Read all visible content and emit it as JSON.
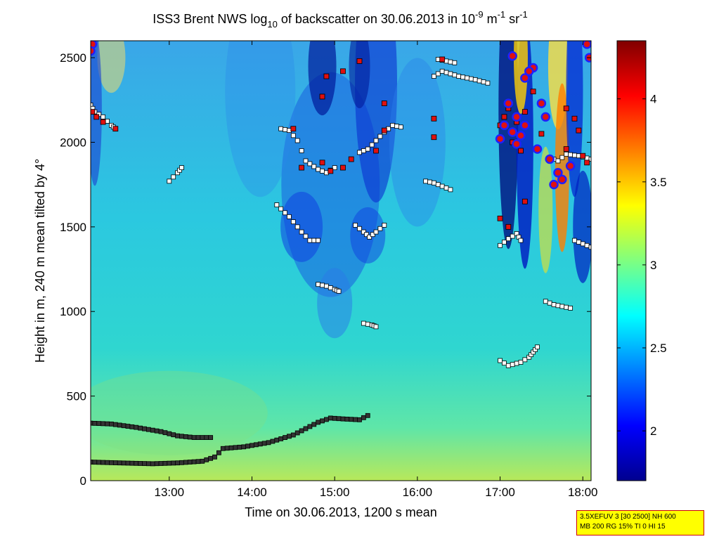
{
  "chart_data": {
    "type": "heatmap",
    "title_main": "ISS3 Brent NWS log",
    "title_sub": "10",
    "title_mid": " of backscatter on 30.06.2013 in 10",
    "title_sup1": "-9",
    "title_unit_m": " m",
    "title_sup2": "-1",
    "title_unit_sr": " sr",
    "title_sup3": "-1",
    "xlabel": "Time on 30.06.2013, 1200 s mean",
    "ylabel": "Height in m, 240 m mean tilted by 4°",
    "x_range_hours": [
      12.05,
      18.1
    ],
    "ylim": [
      0,
      2600
    ],
    "x_ticks": [
      {
        "value": 13,
        "label": "13:00"
      },
      {
        "value": 14,
        "label": "14:00"
      },
      {
        "value": 15,
        "label": "15:00"
      },
      {
        "value": 16,
        "label": "16:00"
      },
      {
        "value": 17,
        "label": "17:00"
      },
      {
        "value": 18,
        "label": "18:00"
      }
    ],
    "y_ticks": [
      {
        "value": 0,
        "label": "0"
      },
      {
        "value": 500,
        "label": "500"
      },
      {
        "value": 1000,
        "label": "1000"
      },
      {
        "value": 1500,
        "label": "1500"
      },
      {
        "value": 2000,
        "label": "2000"
      },
      {
        "value": 2500,
        "label": "2500"
      }
    ],
    "colorbar": {
      "range": [
        1.7,
        4.35
      ],
      "ticks": [
        {
          "value": 2,
          "label": "2"
        },
        {
          "value": 2.5,
          "label": "2.5"
        },
        {
          "value": 3,
          "label": "3"
        },
        {
          "value": 3.5,
          "label": "3.5"
        },
        {
          "value": 4,
          "label": "4"
        }
      ]
    },
    "series": [
      {
        "values": [
          [
            12.05,
            340
          ],
          [
            12.3,
            335
          ],
          [
            12.6,
            315
          ],
          [
            12.9,
            290
          ],
          [
            13.1,
            265
          ],
          [
            13.3,
            255
          ],
          [
            13.5,
            255
          ]
        ]
      },
      {
        "values": [
          [
            12.05,
            110
          ],
          [
            12.4,
            105
          ],
          [
            12.8,
            100
          ],
          [
            13.1,
            105
          ],
          [
            13.4,
            115
          ],
          [
            13.55,
            140
          ],
          [
            13.65,
            190
          ],
          [
            13.9,
            200
          ],
          [
            14.2,
            225
          ],
          [
            14.5,
            270
          ],
          [
            14.8,
            345
          ],
          [
            14.95,
            370
          ],
          [
            15.1,
            365
          ],
          [
            15.3,
            360
          ],
          [
            15.4,
            385
          ]
        ]
      },
      {
        "values": [
          [
            14.3,
            1630
          ],
          [
            14.45,
            1560
          ],
          [
            14.6,
            1470
          ],
          [
            14.7,
            1420
          ],
          [
            14.8,
            1420
          ]
        ]
      },
      {
        "values": [
          [
            15.25,
            1510
          ],
          [
            15.35,
            1470
          ],
          [
            15.42,
            1440
          ],
          [
            15.5,
            1470
          ],
          [
            15.6,
            1510
          ]
        ]
      },
      {
        "values": [
          [
            14.35,
            2080
          ],
          [
            14.45,
            2070
          ],
          [
            14.55,
            2010
          ],
          [
            14.65,
            1890
          ],
          [
            14.8,
            1840
          ],
          [
            14.9,
            1820
          ],
          [
            15.0,
            1850
          ]
        ]
      },
      {
        "values": [
          [
            15.3,
            1940
          ],
          [
            15.4,
            1960
          ],
          [
            15.5,
            2010
          ],
          [
            15.6,
            2060
          ],
          [
            15.7,
            2100
          ],
          [
            15.8,
            2090
          ]
        ]
      },
      {
        "values": [
          [
            16.1,
            1770
          ],
          [
            16.2,
            1760
          ],
          [
            16.3,
            1740
          ],
          [
            16.4,
            1720
          ]
        ]
      },
      {
        "values": [
          [
            16.2,
            2390
          ],
          [
            16.3,
            2420
          ],
          [
            16.5,
            2390
          ],
          [
            16.7,
            2370
          ],
          [
            16.85,
            2350
          ]
        ]
      },
      {
        "values": [
          [
            17.0,
            710
          ],
          [
            17.1,
            680
          ],
          [
            17.25,
            700
          ],
          [
            17.35,
            730
          ],
          [
            17.4,
            760
          ],
          [
            17.45,
            790
          ]
        ]
      },
      {
        "values": [
          [
            17.0,
            1390
          ],
          [
            17.1,
            1430
          ],
          [
            17.2,
            1460
          ],
          [
            17.25,
            1420
          ]
        ]
      },
      {
        "values": [
          [
            17.55,
            1060
          ],
          [
            17.65,
            1040
          ],
          [
            17.75,
            1030
          ],
          [
            17.85,
            1020
          ]
        ]
      },
      {
        "values": [
          [
            17.9,
            1420
          ],
          [
            18.0,
            1400
          ],
          [
            18.1,
            1380
          ]
        ]
      },
      {
        "values": [
          [
            17.6,
            1910
          ],
          [
            17.7,
            1890
          ],
          [
            17.8,
            1930
          ],
          [
            17.95,
            1920
          ],
          [
            18.1,
            1900
          ]
        ]
      },
      {
        "values": [
          [
            14.8,
            1160
          ],
          [
            14.9,
            1150
          ],
          [
            15.0,
            1130
          ],
          [
            15.05,
            1120
          ]
        ]
      },
      {
        "values": [
          [
            15.35,
            930
          ],
          [
            15.45,
            920
          ],
          [
            15.5,
            910
          ]
        ]
      },
      {
        "values": [
          [
            13.0,
            1770
          ],
          [
            13.1,
            1820
          ],
          [
            13.15,
            1850
          ]
        ]
      },
      {
        "values": [
          [
            12.05,
            2220
          ],
          [
            12.1,
            2180
          ],
          [
            12.2,
            2150
          ],
          [
            12.3,
            2100
          ],
          [
            12.35,
            2080
          ]
        ]
      },
      {
        "values": [
          [
            16.25,
            2490
          ],
          [
            16.35,
            2480
          ],
          [
            16.45,
            2470
          ]
        ]
      }
    ],
    "red_points": [
      [
        12.07,
        2180
      ],
      [
        12.12,
        2150
      ],
      [
        12.2,
        2120
      ],
      [
        12.35,
        2080
      ],
      [
        14.5,
        2080
      ],
      [
        14.85,
        1880
      ],
      [
        14.95,
        1830
      ],
      [
        15.1,
        1850
      ],
      [
        14.6,
        1850
      ],
      [
        14.9,
        2390
      ],
      [
        14.85,
        2270
      ],
      [
        15.2,
        1900
      ],
      [
        15.5,
        1950
      ],
      [
        15.6,
        2070
      ],
      [
        15.1,
        2420
      ],
      [
        15.3,
        2480
      ],
      [
        15.6,
        2230
      ],
      [
        16.2,
        2030
      ],
      [
        16.3,
        2490
      ],
      [
        16.2,
        2140
      ],
      [
        17.0,
        2100
      ],
      [
        17.05,
        2150
      ],
      [
        17.1,
        2200
      ],
      [
        17.15,
        2000
      ],
      [
        17.2,
        2120
      ],
      [
        17.25,
        1950
      ],
      [
        17.3,
        2180
      ],
      [
        17.4,
        2300
      ],
      [
        17.5,
        2050
      ],
      [
        17.0,
        1550
      ],
      [
        17.1,
        1500
      ],
      [
        17.3,
        1650
      ],
      [
        17.8,
        2200
      ],
      [
        17.9,
        2140
      ],
      [
        17.95,
        2070
      ],
      [
        17.8,
        1960
      ],
      [
        18.0,
        1920
      ],
      [
        18.05,
        1880
      ]
    ],
    "blue_circles": [
      [
        17.15,
        2510
      ],
      [
        17.3,
        2380
      ],
      [
        17.1,
        2230
      ],
      [
        17.2,
        2150
      ],
      [
        17.05,
        2100
      ],
      [
        17.15,
        2060
      ],
      [
        17.2,
        1990
      ],
      [
        17.25,
        2040
      ],
      [
        17.3,
        2100
      ],
      [
        17.0,
        2020
      ],
      [
        17.5,
        2230
      ],
      [
        17.55,
        2150
      ],
      [
        17.45,
        1960
      ],
      [
        17.6,
        1900
      ],
      [
        17.75,
        1780
      ],
      [
        17.7,
        1820
      ],
      [
        17.85,
        1860
      ],
      [
        17.65,
        1750
      ],
      [
        18.05,
        2580
      ],
      [
        18.08,
        2500
      ],
      [
        12.07,
        2580
      ],
      [
        12.05,
        2540
      ],
      [
        17.4,
        2440
      ],
      [
        17.35,
        2420
      ]
    ]
  },
  "info_box": {
    "line1": "3.5XEFUV 3 [30 2500] NH 600",
    "line2": "MB 200 RG 15% TI 0 HI 15"
  }
}
